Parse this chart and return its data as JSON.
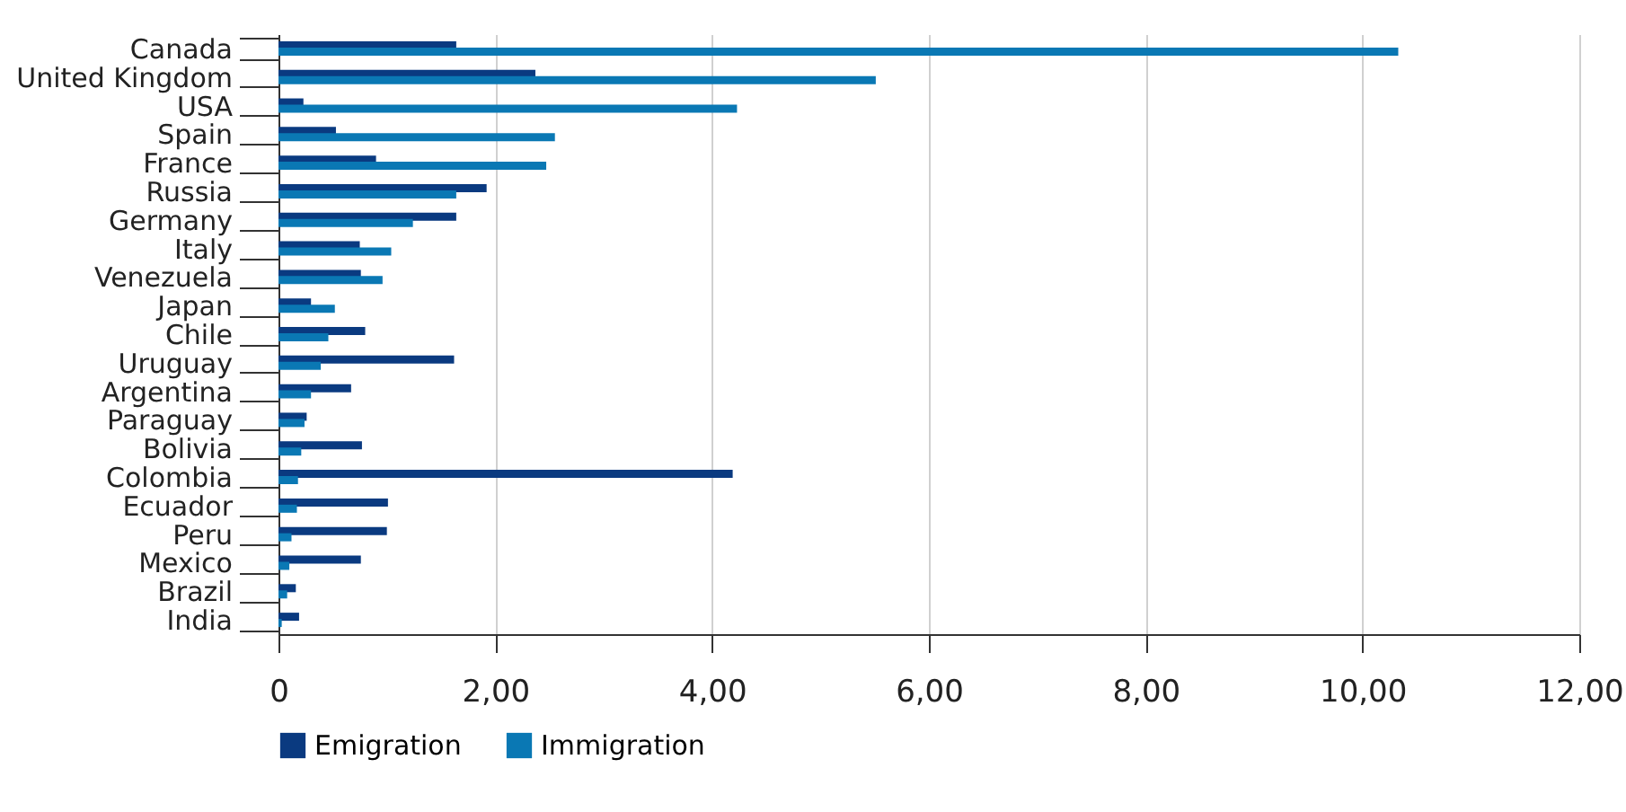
{
  "chart_data": {
    "type": "bar",
    "orientation": "horizontal",
    "categories": [
      "Canada",
      "United Kingdom",
      "USA",
      "Spain",
      "France",
      "Russia",
      "Germany",
      "Italy",
      "Venezuela",
      "Japan",
      "Chile",
      "Uruguay",
      "Argentina",
      "Paraguay",
      "Bolivia",
      "Colombia",
      "Ecuador",
      "Peru",
      "Mexico",
      "Brazil",
      "India"
    ],
    "series": [
      {
        "name": "Emigration",
        "color": "#0a3a80",
        "values": [
          1.64,
          2.37,
          0.23,
          0.53,
          0.9,
          1.92,
          1.64,
          0.75,
          0.76,
          0.3,
          0.8,
          1.62,
          0.67,
          0.26,
          0.77,
          4.19,
          1.01,
          1.0,
          0.76,
          0.16,
          0.19
        ]
      },
      {
        "name": "Immigration",
        "color": "#0a78b4",
        "values": [
          10.33,
          5.51,
          4.23,
          2.55,
          2.47,
          1.64,
          1.24,
          1.04,
          0.96,
          0.52,
          0.46,
          0.39,
          0.3,
          0.24,
          0.21,
          0.18,
          0.17,
          0.12,
          0.1,
          0.08,
          0.03
        ]
      }
    ],
    "xlim": [
      0,
      12
    ],
    "xticks": [
      0,
      {
        "value": 2,
        "label": "2,00"
      },
      {
        "value": 4,
        "label": "4,00"
      },
      {
        "value": 6,
        "label": "6,00"
      },
      {
        "value": 8,
        "label": "8,00"
      },
      {
        "value": 10,
        "label": "10,00"
      },
      {
        "value": 12,
        "label": "12,00"
      }
    ],
    "grid": "x",
    "legend": "bottom"
  }
}
